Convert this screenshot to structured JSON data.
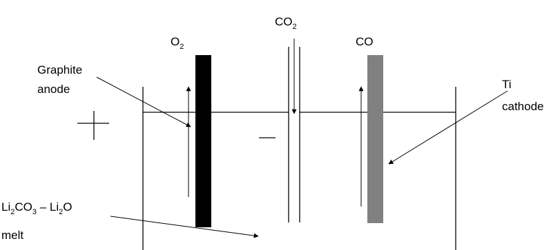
{
  "labels": {
    "o2": {
      "base": "O",
      "sub": "2"
    },
    "co2": {
      "base": "CO",
      "sub": "2"
    },
    "co": "CO",
    "graphite_line1": "Graphite",
    "graphite_line2": "anode",
    "ti_line1": "Ti",
    "ti_line2": "cathode",
    "melt_formula": {
      "p1": "Li",
      "s1": "2",
      "p2": "CO",
      "s2": "3",
      "p3": " – Li",
      "s3": "2",
      "p4": "O"
    },
    "melt_word": "melt"
  },
  "colors": {
    "anode": "#000000",
    "cathode": "#808080"
  }
}
